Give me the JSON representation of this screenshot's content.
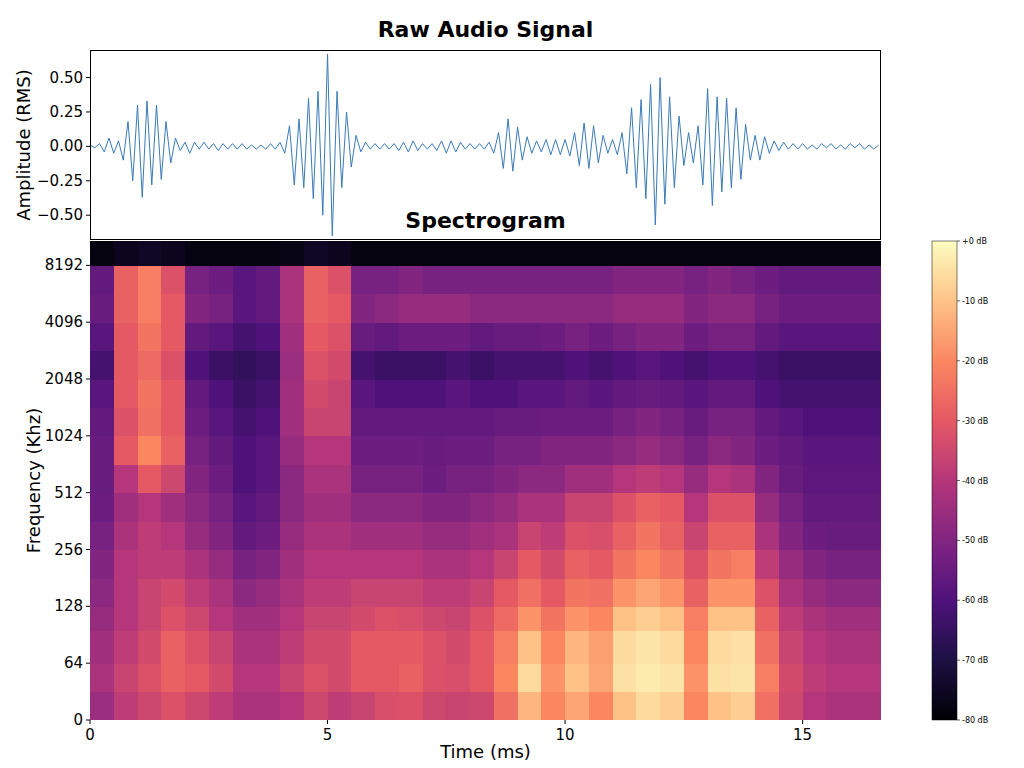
{
  "chart_data": [
    {
      "type": "line",
      "title": "Raw Audio Signal",
      "y_label": "Amplitude (RMS)",
      "color": "#3a7ab8",
      "tick_labels": "y",
      "xlim": [
        0,
        16.65
      ],
      "ylim": [
        -0.68,
        0.7
      ],
      "yticks": [
        {
          "value": -0.5,
          "label": "−0.50"
        },
        {
          "value": -0.25,
          "label": "−0.25"
        },
        {
          "value": 0,
          "label": "0.00"
        },
        {
          "value": 0.25,
          "label": "0.25"
        },
        {
          "value": 0.5,
          "label": "0.50"
        }
      ],
      "x": [
        0,
        0.1,
        0.2,
        0.3,
        0.4,
        0.5,
        0.6,
        0.7,
        0.8,
        0.9,
        1,
        1.1,
        1.2,
        1.3,
        1.4,
        1.5,
        1.6,
        1.7,
        1.8,
        1.9,
        2,
        2.1,
        2.2,
        2.3,
        2.4,
        2.5,
        2.6,
        2.7,
        2.8,
        2.9,
        3,
        3.1,
        3.2,
        3.3,
        3.4,
        3.5,
        3.6,
        3.7,
        3.8,
        3.9,
        4,
        4.1,
        4.2,
        4.3,
        4.4,
        4.5,
        4.6,
        4.7,
        4.8,
        4.9,
        5,
        5.1,
        5.2,
        5.3,
        5.4,
        5.5,
        5.6,
        5.7,
        5.8,
        5.9,
        6,
        6.1,
        6.2,
        6.3,
        6.4,
        6.5,
        6.6,
        6.7,
        6.8,
        6.9,
        7,
        7.1,
        7.2,
        7.3,
        7.4,
        7.5,
        7.6,
        7.7,
        7.8,
        7.9,
        8,
        8.1,
        8.2,
        8.3,
        8.4,
        8.5,
        8.6,
        8.7,
        8.8,
        8.9,
        9,
        9.1,
        9.2,
        9.3,
        9.4,
        9.5,
        9.6,
        9.7,
        9.8,
        9.9,
        10,
        10.1,
        10.2,
        10.3,
        10.4,
        10.5,
        10.6,
        10.7,
        10.8,
        10.9,
        11,
        11.1,
        11.2,
        11.3,
        11.4,
        11.5,
        11.6,
        11.7,
        11.8,
        11.9,
        12,
        12.1,
        12.2,
        12.3,
        12.4,
        12.5,
        12.6,
        12.7,
        12.8,
        12.9,
        13,
        13.1,
        13.2,
        13.3,
        13.4,
        13.5,
        13.6,
        13.7,
        13.8,
        13.9,
        14,
        14.1,
        14.2,
        14.3,
        14.4,
        14.5,
        14.6,
        14.7,
        14.8,
        14.9,
        15,
        15.1,
        15.2,
        15.3,
        15.4,
        15.5,
        15.6,
        15.7,
        15.8,
        15.9,
        16,
        16.1,
        16.2,
        16.3,
        16.4,
        16.5,
        16.6
      ],
      "values": [
        0.01,
        -0.01,
        0.02,
        -0.04,
        0.06,
        -0.05,
        0.04,
        -0.1,
        0.18,
        -0.25,
        0.3,
        -0.37,
        0.33,
        -0.28,
        0.3,
        -0.24,
        0.18,
        -0.12,
        0.06,
        -0.03,
        0.03,
        -0.05,
        0.03,
        -0.02,
        0.03,
        -0.02,
        0.02,
        -0.03,
        0.02,
        -0.02,
        0.02,
        -0.02,
        0.02,
        -0.02,
        0.01,
        -0.02,
        0.01,
        -0.02,
        0.02,
        -0.02,
        0.03,
        -0.05,
        0.15,
        -0.28,
        0.2,
        -0.3,
        0.35,
        -0.38,
        0.4,
        -0.5,
        0.67,
        -0.65,
        0.4,
        -0.3,
        0.25,
        -0.15,
        0.08,
        -0.04,
        0.03,
        -0.02,
        0.02,
        -0.02,
        0.02,
        -0.02,
        0.02,
        -0.03,
        0.03,
        -0.04,
        0.04,
        -0.03,
        0.02,
        -0.02,
        0.02,
        -0.03,
        0.04,
        -0.05,
        0.04,
        -0.04,
        0.03,
        -0.02,
        0.02,
        -0.02,
        0.02,
        -0.02,
        0.03,
        -0.05,
        0.1,
        -0.16,
        0.2,
        -0.18,
        0.14,
        -0.1,
        0.07,
        -0.05,
        0.04,
        -0.04,
        0.05,
        -0.06,
        0.05,
        -0.06,
        0.05,
        -0.07,
        0.1,
        -0.14,
        0.17,
        -0.16,
        0.15,
        -0.12,
        0.08,
        -0.05,
        0.05,
        -0.06,
        0.1,
        -0.2,
        0.28,
        -0.3,
        0.34,
        -0.38,
        0.45,
        -0.57,
        0.5,
        -0.42,
        0.36,
        -0.3,
        0.22,
        -0.14,
        0.1,
        -0.12,
        0.15,
        -0.28,
        0.42,
        -0.43,
        0.36,
        -0.33,
        0.35,
        -0.3,
        0.28,
        -0.24,
        0.16,
        -0.1,
        0.08,
        -0.1,
        0.07,
        -0.05,
        0.04,
        -0.03,
        0.03,
        -0.02,
        0.02,
        -0.02,
        0.02,
        -0.02,
        0.01,
        -0.02,
        0.02,
        -0.01,
        0.02,
        -0.02,
        0.01,
        -0.02,
        0.02,
        -0.01,
        0.02,
        -0.02,
        0.01,
        -0.02,
        0.01
      ]
    },
    {
      "type": "heatmap",
      "title": "Spectrogram",
      "x_label": "Time (ms)",
      "y_label": "Frequency (Khz)",
      "log": "y",
      "color": "magma",
      "xlim": [
        0,
        16.65
      ],
      "ylim": [
        0,
        11025
      ],
      "xticks": [
        0,
        5,
        10,
        15
      ],
      "yticks": [
        0,
        64,
        128,
        256,
        512,
        1024,
        2048,
        4096,
        8192
      ],
      "x_edges": [
        0,
        0.5,
        1,
        1.5,
        2,
        2.5,
        3,
        3.5,
        4,
        4.5,
        5,
        5.5,
        6,
        6.5,
        7,
        7.5,
        8,
        8.5,
        9,
        9.5,
        10,
        10.5,
        11,
        11.5,
        12,
        12.5,
        13,
        13.5,
        14,
        14.5,
        15,
        15.5,
        16,
        16.5,
        16.65
      ],
      "y_edges": [
        0,
        32,
        64,
        96,
        128,
        181,
        256,
        362,
        512,
        724,
        1024,
        1448,
        2048,
        2896,
        4096,
        5793,
        8192,
        11025
      ],
      "cells": [
        [
          -45,
          -38,
          -35,
          -32,
          -35,
          -38,
          -42,
          -42,
          -40,
          -35,
          -38,
          -36,
          -33,
          -32,
          -35,
          -36,
          -35,
          -25,
          -12,
          -20,
          -15,
          -20,
          -10,
          -6,
          -8,
          -20,
          -10,
          -8,
          -25,
          -35,
          -40,
          -42,
          -42,
          -42
        ],
        [
          -42,
          -36,
          -32,
          -28,
          -30,
          -34,
          -40,
          -40,
          -36,
          -32,
          -34,
          -30,
          -30,
          -28,
          -32,
          -33,
          -30,
          -20,
          -6,
          -18,
          -10,
          -15,
          -5,
          -3,
          -4,
          -18,
          -5,
          -4,
          -22,
          -34,
          -38,
          -40,
          -40,
          -40
        ],
        [
          -44,
          -38,
          -34,
          -28,
          -32,
          -36,
          -42,
          -42,
          -38,
          -34,
          -34,
          -30,
          -30,
          -30,
          -32,
          -34,
          -30,
          -22,
          -10,
          -20,
          -12,
          -16,
          -6,
          -4,
          -6,
          -20,
          -6,
          -5,
          -25,
          -36,
          -40,
          -42,
          -42,
          -42
        ],
        [
          -46,
          -40,
          -36,
          -32,
          -35,
          -40,
          -44,
          -44,
          -40,
          -36,
          -36,
          -34,
          -32,
          -33,
          -35,
          -36,
          -32,
          -26,
          -18,
          -24,
          -18,
          -20,
          -10,
          -8,
          -10,
          -22,
          -10,
          -10,
          -28,
          -38,
          -42,
          -44,
          -44,
          -44
        ],
        [
          -48,
          -40,
          -36,
          -34,
          -38,
          -42,
          -48,
          -46,
          -42,
          -38,
          -38,
          -36,
          -36,
          -36,
          -38,
          -38,
          -36,
          -30,
          -25,
          -30,
          -24,
          -25,
          -18,
          -15,
          -18,
          -28,
          -18,
          -18,
          -32,
          -42,
          -46,
          -48,
          -48,
          -48
        ],
        [
          -50,
          -40,
          -38,
          -38,
          -42,
          -46,
          -52,
          -50,
          -44,
          -40,
          -40,
          -40,
          -40,
          -40,
          -42,
          -42,
          -40,
          -36,
          -30,
          -34,
          -28,
          -30,
          -24,
          -20,
          -24,
          -32,
          -24,
          -22,
          -38,
          -46,
          -50,
          -52,
          -52,
          -52
        ],
        [
          -52,
          -42,
          -38,
          -40,
          -46,
          -50,
          -56,
          -54,
          -46,
          -42,
          -42,
          -44,
          -44,
          -44,
          -46,
          -46,
          -44,
          -42,
          -36,
          -38,
          -32,
          -33,
          -28,
          -24,
          -28,
          -36,
          -28,
          -28,
          -42,
          -50,
          -54,
          -55,
          -55,
          -55
        ],
        [
          -54,
          -44,
          -40,
          -44,
          -48,
          -52,
          -58,
          -56,
          -48,
          -44,
          -44,
          -48,
          -48,
          -48,
          -50,
          -50,
          -48,
          -46,
          -42,
          -42,
          -36,
          -36,
          -32,
          -28,
          -30,
          -40,
          -32,
          -32,
          -46,
          -52,
          -56,
          -56,
          -56,
          -56
        ],
        [
          -55,
          -40,
          -30,
          -35,
          -50,
          -54,
          -60,
          -58,
          -48,
          -42,
          -42,
          -52,
          -52,
          -52,
          -54,
          -52,
          -52,
          -50,
          -48,
          -48,
          -44,
          -44,
          -40,
          -38,
          -40,
          -46,
          -40,
          -42,
          -50,
          -55,
          -57,
          -57,
          -57,
          -57
        ],
        [
          -55,
          -30,
          -20,
          -28,
          -52,
          -56,
          -60,
          -58,
          -46,
          -40,
          -40,
          -54,
          -54,
          -54,
          -55,
          -54,
          -54,
          -52,
          -52,
          -50,
          -50,
          -50,
          -48,
          -46,
          -48,
          -52,
          -48,
          -50,
          -54,
          -56,
          -58,
          -58,
          -58,
          -58
        ],
        [
          -56,
          -32,
          -25,
          -30,
          -54,
          -58,
          -62,
          -60,
          -44,
          -36,
          -36,
          -56,
          -56,
          -56,
          -56,
          -56,
          -56,
          -55,
          -55,
          -54,
          -54,
          -54,
          -52,
          -50,
          -52,
          -55,
          -52,
          -52,
          -56,
          -58,
          -60,
          -60,
          -60,
          -60
        ],
        [
          -58,
          -30,
          -24,
          -30,
          -56,
          -60,
          -64,
          -62,
          -44,
          -34,
          -36,
          -58,
          -60,
          -60,
          -60,
          -58,
          -60,
          -60,
          -58,
          -58,
          -56,
          -58,
          -56,
          -55,
          -56,
          -58,
          -56,
          -56,
          -60,
          -62,
          -62,
          -62,
          -62,
          -62
        ],
        [
          -62,
          -30,
          -26,
          -32,
          -60,
          -64,
          -66,
          -64,
          -45,
          -32,
          -34,
          -62,
          -64,
          -64,
          -64,
          -62,
          -64,
          -62,
          -62,
          -62,
          -60,
          -62,
          -60,
          -58,
          -60,
          -62,
          -60,
          -60,
          -62,
          -64,
          -64,
          -64,
          -64,
          -64
        ],
        [
          -58,
          -30,
          -24,
          -30,
          -56,
          -58,
          -62,
          -60,
          -44,
          -30,
          -32,
          -55,
          -56,
          -54,
          -54,
          -54,
          -56,
          -55,
          -55,
          -54,
          -52,
          -54,
          -52,
          -50,
          -50,
          -54,
          -52,
          -52,
          -56,
          -58,
          -58,
          -58,
          -58,
          -58
        ],
        [
          -55,
          -28,
          -22,
          -30,
          -50,
          -52,
          -58,
          -56,
          -42,
          -28,
          -30,
          -50,
          -48,
          -46,
          -46,
          -46,
          -48,
          -48,
          -48,
          -48,
          -48,
          -48,
          -46,
          -46,
          -46,
          -50,
          -48,
          -48,
          -52,
          -54,
          -54,
          -54,
          -54,
          -54
        ],
        [
          -56,
          -28,
          -22,
          -32,
          -52,
          -54,
          -58,
          -56,
          -42,
          -28,
          -32,
          -52,
          -52,
          -50,
          -52,
          -52,
          -52,
          -52,
          -52,
          -52,
          -52,
          -52,
          -50,
          -50,
          -50,
          -52,
          -50,
          -52,
          -54,
          -56,
          -56,
          -56,
          -56,
          -56
        ],
        [
          -78,
          -76,
          -75,
          -76,
          -78,
          -78,
          -78,
          -78,
          -77,
          -75,
          -76,
          -78,
          -78,
          -78,
          -78,
          -78,
          -78,
          -78,
          -78,
          -78,
          -78,
          -78,
          -78,
          -78,
          -78,
          -78,
          -78,
          -78,
          -78,
          -78,
          -78,
          -78,
          -78,
          -78
        ]
      ],
      "colorbar_lim": [
        -80,
        0
      ],
      "colorbar_ticks": [
        {
          "value": 0,
          "label": "+0 dB"
        },
        {
          "value": -10,
          "label": "-10 dB"
        },
        {
          "value": -20,
          "label": "-20 dB"
        },
        {
          "value": -30,
          "label": "-30 dB"
        },
        {
          "value": -40,
          "label": "-40 dB"
        },
        {
          "value": -50,
          "label": "-50 dB"
        },
        {
          "value": -60,
          "label": "-60 dB"
        },
        {
          "value": -70,
          "label": "-70 dB"
        },
        {
          "value": -80,
          "label": "-80 dB"
        }
      ]
    }
  ]
}
